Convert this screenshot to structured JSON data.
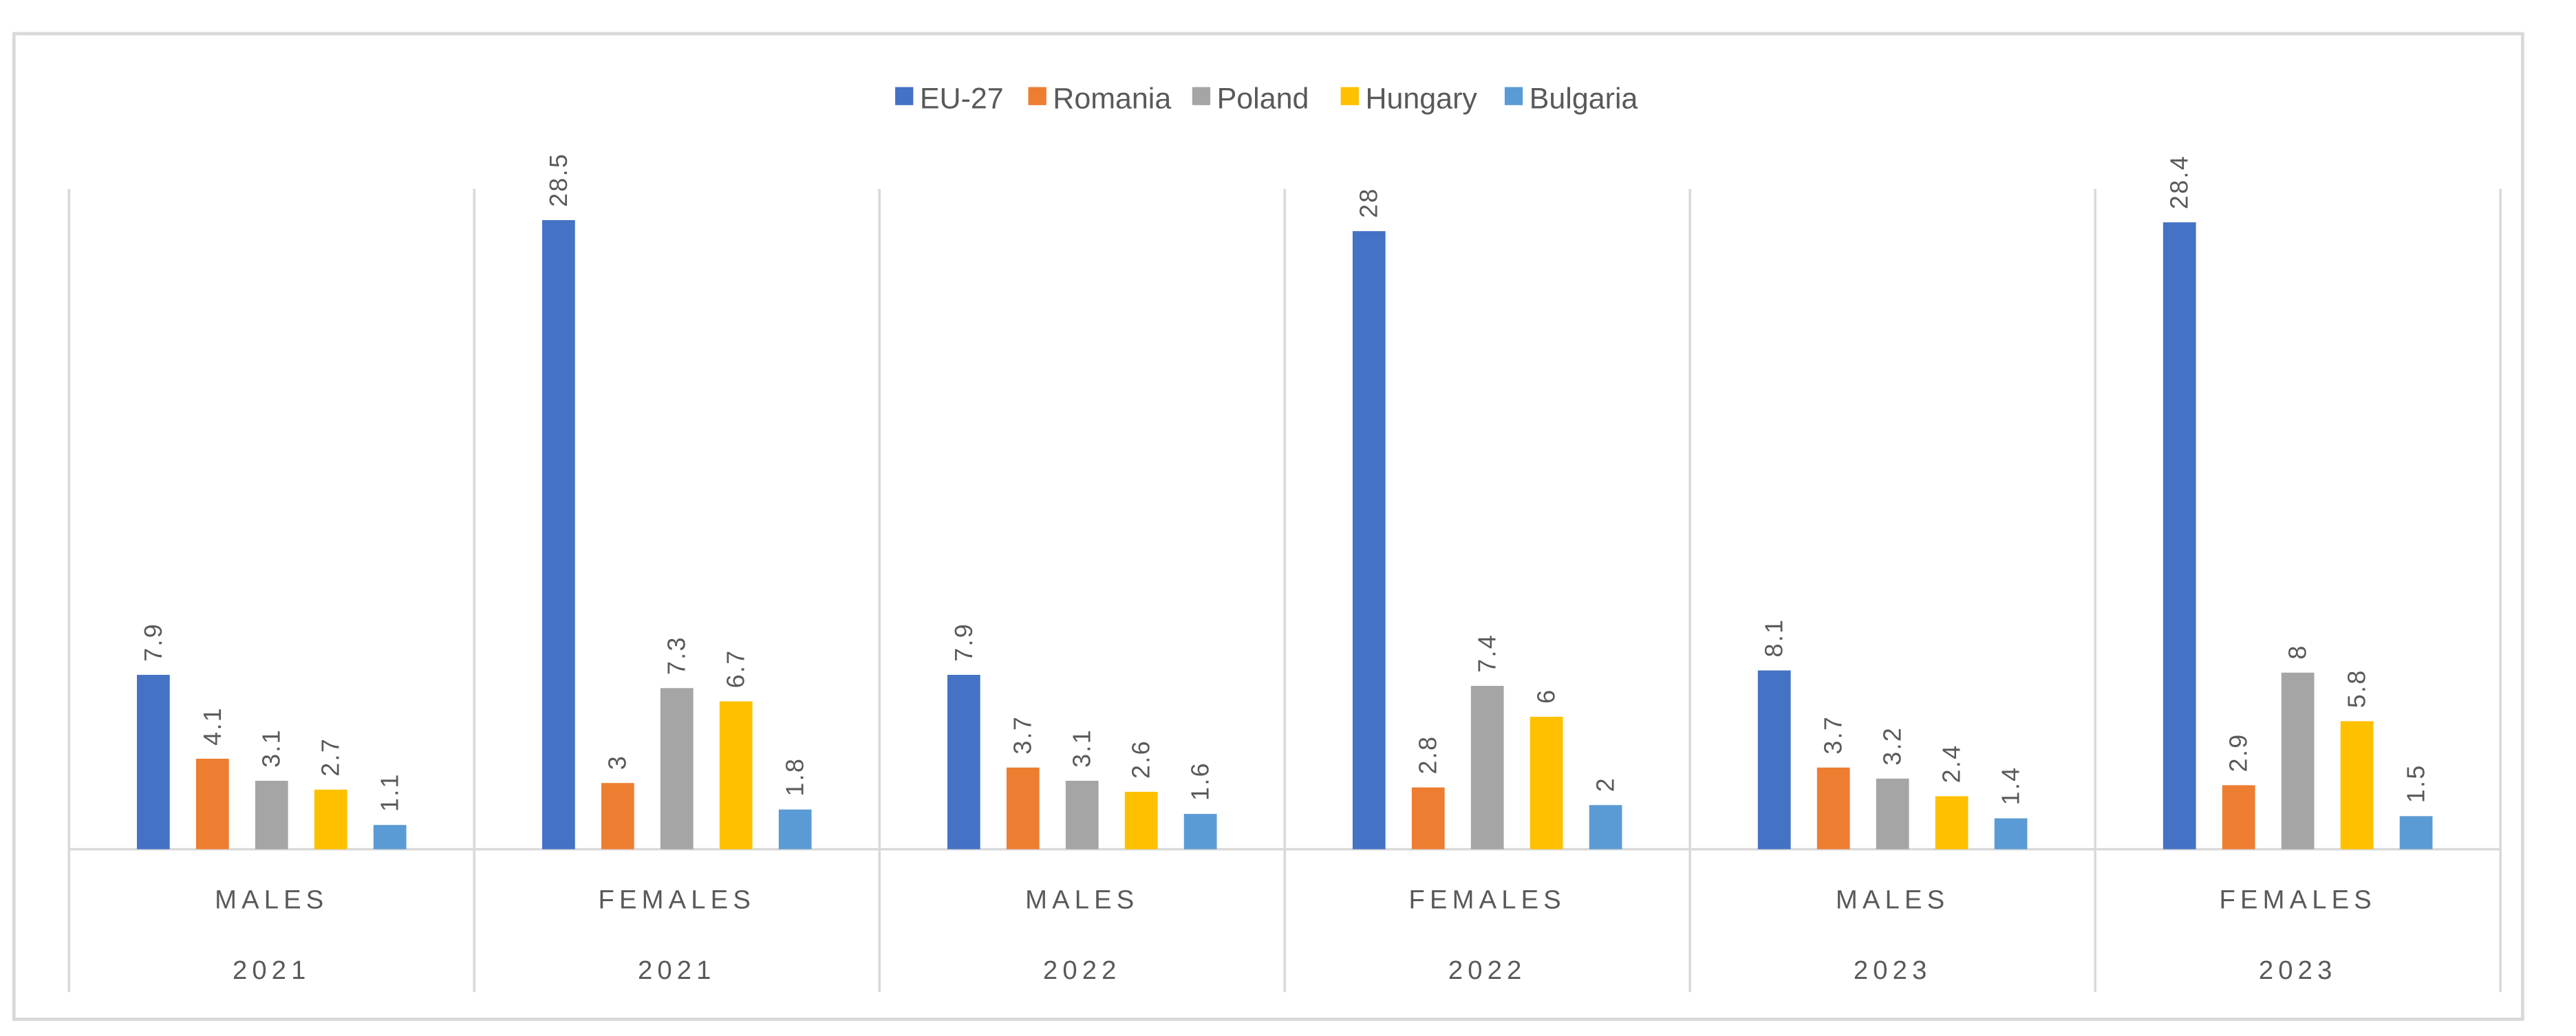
{
  "chart_data": {
    "type": "bar",
    "title": "",
    "xlabel": "",
    "ylabel": "",
    "ylim": [
      0,
      30
    ],
    "grid": false,
    "legend_position": "top-center",
    "categories": [
      {
        "group": "MALES",
        "year": "2021"
      },
      {
        "group": "FEMALES",
        "year": "2021"
      },
      {
        "group": "MALES",
        "year": "2022"
      },
      {
        "group": "FEMALES",
        "year": "2022"
      },
      {
        "group": "MALES",
        "year": "2023"
      },
      {
        "group": "FEMALES",
        "year": "2023"
      }
    ],
    "series": [
      {
        "name": "EU-27",
        "color": "#4472C4",
        "values": [
          7.9,
          28.5,
          7.9,
          28,
          8.1,
          28.4
        ]
      },
      {
        "name": "Romania",
        "color": "#ED7D31",
        "values": [
          4.1,
          3,
          3.7,
          2.8,
          3.7,
          2.9
        ]
      },
      {
        "name": "Poland",
        "color": "#A5A5A5",
        "values": [
          3.1,
          7.3,
          3.1,
          7.4,
          3.2,
          8
        ]
      },
      {
        "name": "Hungary",
        "color": "#FFC000",
        "values": [
          2.7,
          6.7,
          2.6,
          6,
          2.4,
          5.8
        ]
      },
      {
        "name": "Bulgaria",
        "color": "#5B9BD5",
        "values": [
          1.1,
          1.8,
          1.6,
          2,
          1.4,
          1.5
        ]
      }
    ]
  }
}
